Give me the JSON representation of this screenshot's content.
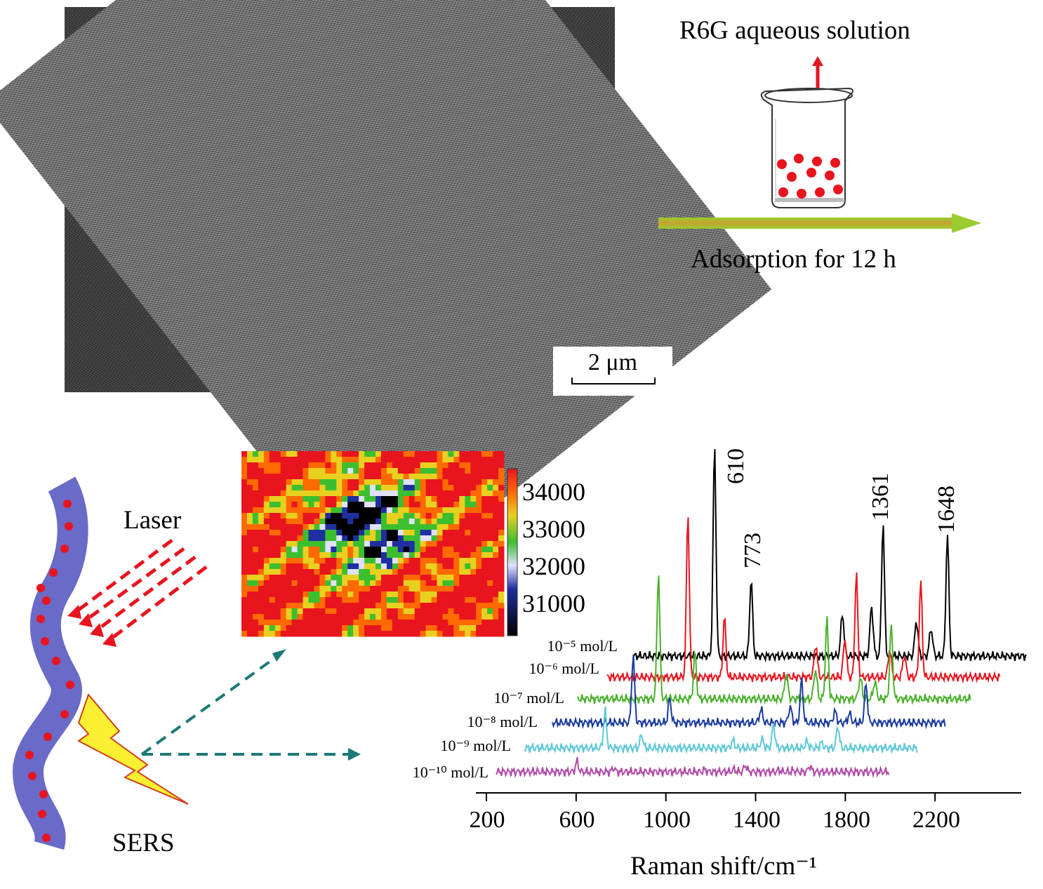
{
  "sem": {
    "scale_label": "2  μm"
  },
  "beaker": {
    "title": "R6G aqueous solution",
    "process_label": "Adsorption  for 12 h"
  },
  "fiber": {
    "laser_label": "Laser",
    "sers_label": "SERS"
  },
  "heatmap": {
    "colorbar_ticks": [
      "34000",
      "33000",
      "32000",
      "31000"
    ],
    "colormap": [
      "#000000",
      "#1f2fa0",
      "#e0e0ff",
      "#3cbf2e",
      "#e8d020",
      "#ff6a00",
      "#e8141e"
    ]
  },
  "colors": {
    "fiber": "#6a6ac8",
    "particle": "#e8141e",
    "laser": "#e8141e",
    "arrow_teal": "#1a7a78",
    "bolt": "#f8f030",
    "process_arrow_start": "#e8b030",
    "process_arrow_end": "#9acc30"
  },
  "chart_data": {
    "type": "line",
    "xlabel": "Raman shift/cm⁻¹",
    "x_ticks": [
      "200",
      "600",
      "1000",
      "1400",
      "1800",
      "2200"
    ],
    "xlim": [
      200,
      2550
    ],
    "peak_labels": [
      "610",
      "773",
      "1361",
      "1648"
    ],
    "peaks": [
      610,
      773,
      1361,
      1648
    ],
    "series": [
      {
        "name": "10⁻⁵ mol/L",
        "color": "#000000",
        "intensity": 1.0
      },
      {
        "name": "10⁻⁶ mol/L",
        "color": "#e8141e",
        "intensity": 0.78
      },
      {
        "name": "10⁻⁷ mol/L",
        "color": "#49b02b",
        "intensity": 0.6
      },
      {
        "name": "10⁻⁸ mol/L",
        "color": "#1a3a9c",
        "intensity": 0.32
      },
      {
        "name": "10⁻⁹ mol/L",
        "color": "#5ec8d8",
        "intensity": 0.18
      },
      {
        "name": "10⁻¹⁰ mol/L",
        "color": "#b04aa8",
        "intensity": 0.05
      }
    ]
  }
}
